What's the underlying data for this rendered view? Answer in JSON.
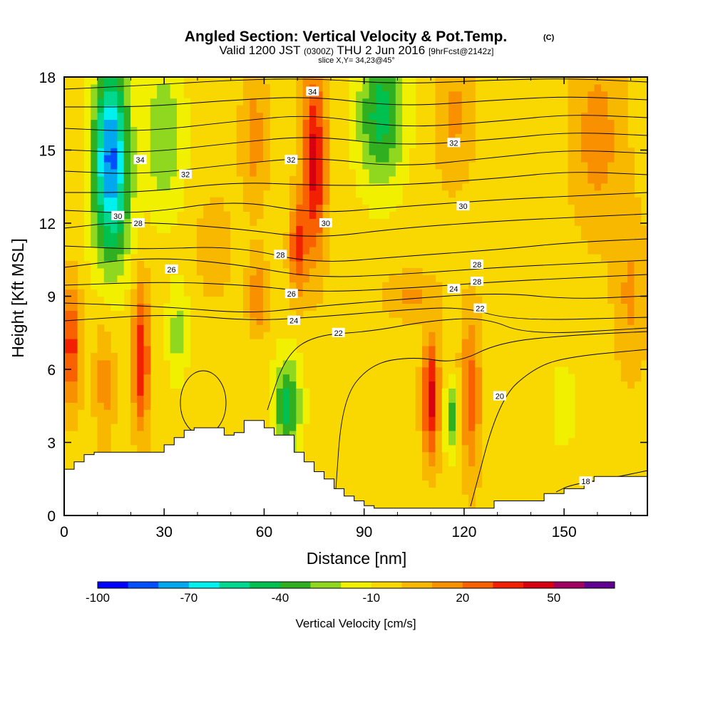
{
  "chart_data": {
    "type": "heatmap",
    "title": "Angled Section: Vertical Velocity & Pot.Temp.",
    "title_mark": "(C)",
    "subtitle": {
      "prefix": "Valid 1200 JST",
      "utc": "(0300Z)",
      "date": "THU 2 Jun 2016",
      "forecast": "[9hrFcst@2142z]"
    },
    "slice_label": "slice X,Y= 34,23@45°",
    "xlabel": "Distance [nm]",
    "ylabel": "Height [Kft MSL]",
    "xlim": [
      0,
      175
    ],
    "ylim": [
      0,
      18
    ],
    "x_ticks": [
      "0",
      "30",
      "60",
      "90",
      "120",
      "150"
    ],
    "x_tick_values": [
      0,
      30,
      60,
      90,
      120,
      150
    ],
    "y_ticks": [
      "0",
      "3",
      "6",
      "9",
      "12",
      "15",
      "18"
    ],
    "y_tick_values": [
      0,
      3,
      6,
      9,
      12,
      15,
      18
    ],
    "colorbar": {
      "label": "Vertical Velocity [cm/s]",
      "min": -100,
      "max": 70,
      "step": 10,
      "tick_labels": [
        "-100",
        "-70",
        "-40",
        "-10",
        "20",
        "50"
      ],
      "tick_values": [
        -100,
        -70,
        -40,
        -10,
        20,
        50
      ],
      "colors": [
        "#0000ff",
        "#0050ff",
        "#00a8f0",
        "#00f0f0",
        "#00d890",
        "#00c050",
        "#30b020",
        "#90d820",
        "#f0f000",
        "#f8d800",
        "#f8b800",
        "#f89000",
        "#f86000",
        "#f02000",
        "#d80010",
        "#a00060",
        "#600090"
      ]
    },
    "background_value": -5,
    "terrain": {
      "x": [
        0,
        3,
        6,
        9,
        12,
        15,
        18,
        21,
        24,
        27,
        30,
        33,
        36,
        39,
        42,
        45,
        48,
        51,
        54,
        57,
        60,
        63,
        66,
        69,
        72,
        75,
        78,
        81,
        84,
        87,
        90,
        93,
        96,
        99,
        102,
        105,
        108,
        111,
        114,
        117,
        120,
        123,
        126,
        129,
        132,
        135,
        138,
        141,
        144,
        147,
        150,
        153,
        156,
        159,
        162,
        165,
        168,
        171,
        175
      ],
      "height": [
        1.9,
        2.2,
        2.5,
        2.6,
        2.6,
        2.6,
        2.6,
        2.6,
        2.6,
        2.6,
        2.9,
        3.2,
        3.5,
        3.6,
        3.6,
        3.6,
        3.3,
        3.4,
        3.9,
        3.9,
        3.6,
        3.3,
        3.3,
        2.6,
        2.2,
        1.8,
        1.5,
        1.1,
        0.8,
        0.6,
        0.4,
        0.3,
        0.3,
        0.3,
        0.3,
        0.3,
        0.3,
        0.3,
        0.3,
        0.3,
        0.3,
        0.3,
        0.3,
        0.6,
        0.6,
        0.6,
        0.6,
        0.6,
        0.9,
        0.9,
        1.1,
        1.1,
        1.4,
        1.6,
        1.6,
        1.6,
        1.6,
        1.6,
        1.6
      ]
    },
    "velocity_features": [
      {
        "x": 14,
        "y": 15.5,
        "sx": 5,
        "sy": 3.5,
        "value": -60
      },
      {
        "x": 14,
        "y": 13.0,
        "sx": 6,
        "sy": 3.5,
        "value": -38
      },
      {
        "x": 30,
        "y": 15.5,
        "sx": 6,
        "sy": 3.0,
        "value": -30
      },
      {
        "x": 95,
        "y": 16.5,
        "sx": 7,
        "sy": 3.0,
        "value": -45
      },
      {
        "x": 160,
        "y": 15.5,
        "sx": 8,
        "sy": 4.0,
        "value": 15
      },
      {
        "x": 75,
        "y": 14.5,
        "sx": 3.5,
        "sy": 4.0,
        "value": 45
      },
      {
        "x": 70,
        "y": 11.0,
        "sx": 2.5,
        "sy": 2.0,
        "value": 30
      },
      {
        "x": 57,
        "y": 15.5,
        "sx": 4,
        "sy": 3.0,
        "value": 15
      },
      {
        "x": 117,
        "y": 16.5,
        "sx": 6,
        "sy": 3.0,
        "value": 12
      },
      {
        "x": 2,
        "y": 7.0,
        "sx": 3,
        "sy": 2.5,
        "value": 35
      },
      {
        "x": 23,
        "y": 6.5,
        "sx": 2.5,
        "sy": 3.0,
        "value": 40
      },
      {
        "x": 12,
        "y": 5.5,
        "sx": 3,
        "sy": 2.5,
        "value": 15
      },
      {
        "x": 110,
        "y": 4.8,
        "sx": 2.5,
        "sy": 2.5,
        "value": 45
      },
      {
        "x": 122,
        "y": 5.0,
        "sx": 3,
        "sy": 3.5,
        "value": 25
      },
      {
        "x": 58,
        "y": 9.0,
        "sx": 3,
        "sy": 1.5,
        "value": 20
      },
      {
        "x": 104,
        "y": 9.0,
        "sx": 8,
        "sy": 1.0,
        "value": 12
      },
      {
        "x": 67,
        "y": 4.5,
        "sx": 4,
        "sy": 2.0,
        "value": -45
      },
      {
        "x": 34,
        "y": 7.5,
        "sx": 3,
        "sy": 2.0,
        "value": -25
      },
      {
        "x": 116,
        "y": 4.0,
        "sx": 2,
        "sy": 1.5,
        "value": -35
      },
      {
        "x": 45,
        "y": 11.0,
        "sx": 5,
        "sy": 2.0,
        "value": 10
      },
      {
        "x": 170,
        "y": 9.0,
        "sx": 5,
        "sy": 3.5,
        "value": 12
      },
      {
        "x": 150,
        "y": 4.5,
        "sx": 6,
        "sy": 3.0,
        "value": -12
      }
    ],
    "contour_labels": [
      {
        "text": "34",
        "x": 74.5,
        "y": 17.4
      },
      {
        "text": "34",
        "x": 22.8,
        "y": 14.6
      },
      {
        "text": "32",
        "x": 68.1,
        "y": 14.6
      },
      {
        "text": "32",
        "x": 36.4,
        "y": 14.0
      },
      {
        "text": "32",
        "x": 116.9,
        "y": 15.3
      },
      {
        "text": "30",
        "x": 16.1,
        "y": 12.3
      },
      {
        "text": "30",
        "x": 78.5,
        "y": 12.0
      },
      {
        "text": "30",
        "x": 119.7,
        "y": 12.7
      },
      {
        "text": "28",
        "x": 22.2,
        "y": 12.0
      },
      {
        "text": "28",
        "x": 64.9,
        "y": 10.7
      },
      {
        "text": "28",
        "x": 123.9,
        "y": 10.3
      },
      {
        "text": "28",
        "x": 123.9,
        "y": 9.6
      },
      {
        "text": "26",
        "x": 32.2,
        "y": 10.1
      },
      {
        "text": "26",
        "x": 68.2,
        "y": 9.1
      },
      {
        "text": "24",
        "x": 68.9,
        "y": 8.0
      },
      {
        "text": "24",
        "x": 116.9,
        "y": 9.3
      },
      {
        "text": "22",
        "x": 82.3,
        "y": 7.5
      },
      {
        "text": "22",
        "x": 124.8,
        "y": 8.5
      },
      {
        "text": "20",
        "x": 130.7,
        "y": 4.9
      },
      {
        "text": "18",
        "x": 156.5,
        "y": 1.4
      }
    ]
  }
}
